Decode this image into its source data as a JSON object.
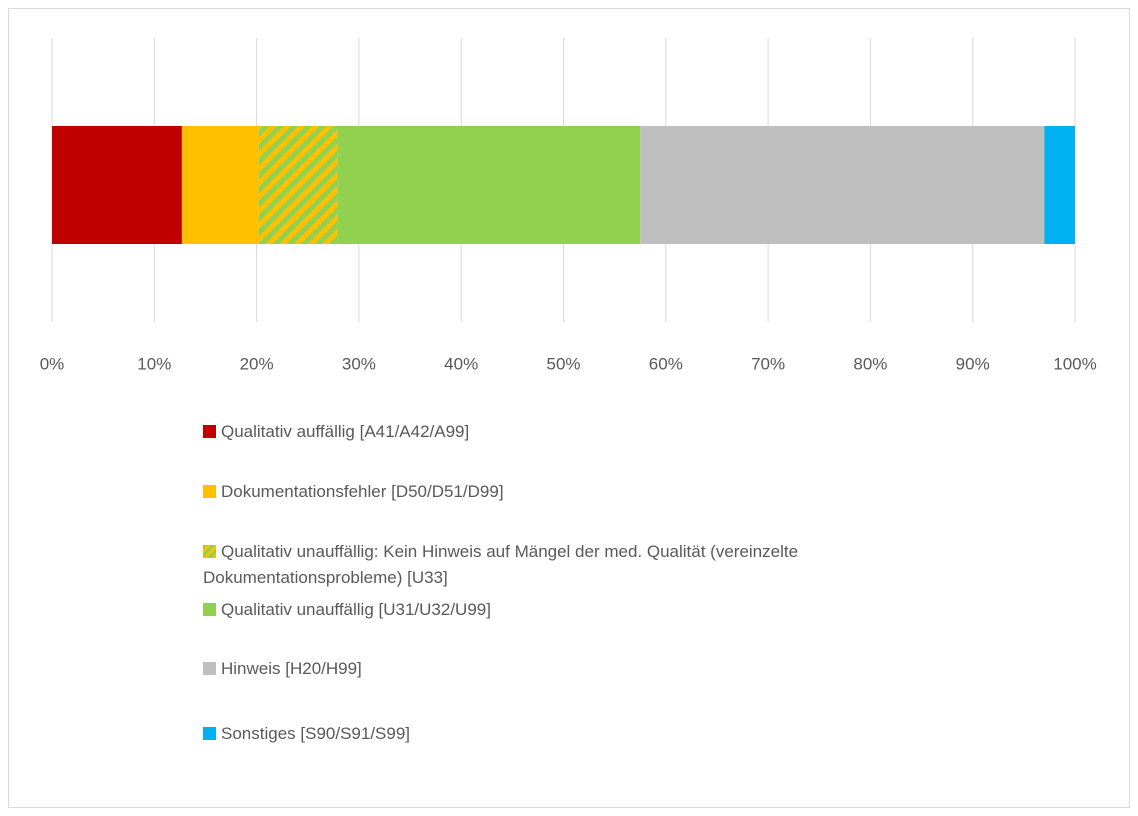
{
  "chart_data": {
    "type": "stacked_bar_horizontal",
    "categories": [
      null
    ],
    "series": [
      {
        "name": "Qualitativ auffällig [A41/A42/A99]",
        "color": "#c00000",
        "values": [
          12.7
        ]
      },
      {
        "name": "Dokumentationsfehler [D50/D51/D99]",
        "color": "#ffc000",
        "values": [
          7.5
        ]
      },
      {
        "name": "Qualitativ unauffällig: Kein Hinweis auf Mängel der med. Qualität (vereinzelte Dokumentationsprobleme) [U33]",
        "color": "#92d050",
        "hatch_color": "#ffc000",
        "values": [
          7.7
        ]
      },
      {
        "name": "Qualitativ unauffällig [U31/U32/U99]",
        "color": "#92d050",
        "values": [
          29.6
        ]
      },
      {
        "name": "Hinweis [H20/H99]",
        "color": "#bfbfbf",
        "values": [
          39.5
        ]
      },
      {
        "name": "Sonstiges [S90/S91/S99]",
        "color": "#00b0f0",
        "values": [
          3.0
        ]
      }
    ],
    "xlim": [
      0,
      100
    ],
    "xticks": [
      {
        "value": 0,
        "label": "0%"
      },
      {
        "value": 10,
        "label": "10%"
      },
      {
        "value": 20,
        "label": "20%"
      },
      {
        "value": 30,
        "label": "30%"
      },
      {
        "value": 40,
        "label": "40%"
      },
      {
        "value": 50,
        "label": "50%"
      },
      {
        "value": 60,
        "label": "60%"
      },
      {
        "value": 70,
        "label": "70%"
      },
      {
        "value": 80,
        "label": "80%"
      },
      {
        "value": 90,
        "label": "90%"
      },
      {
        "value": 100,
        "label": "100%"
      }
    ],
    "grid": true
  }
}
